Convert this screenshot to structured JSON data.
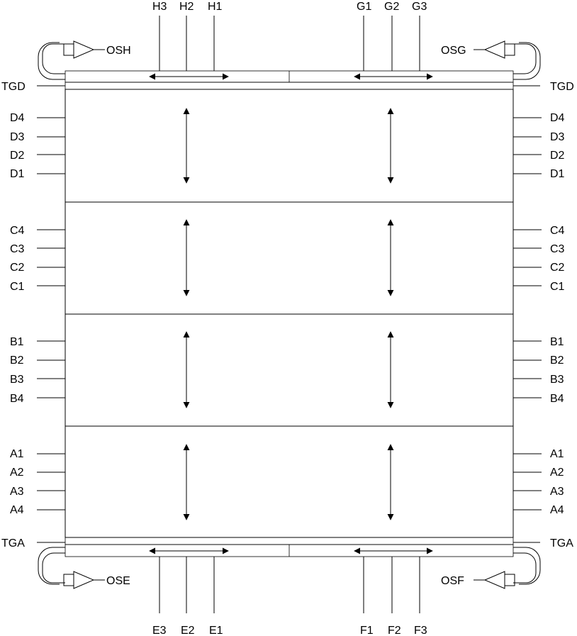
{
  "colors": {
    "line": "#000000",
    "background": "#ffffff"
  },
  "top_pins": {
    "left": [
      "H3",
      "H2",
      "H1"
    ],
    "right": [
      "G1",
      "G2",
      "G3"
    ]
  },
  "bottom_pins": {
    "left": [
      "E3",
      "E2",
      "E1"
    ],
    "right": [
      "F1",
      "F2",
      "F3"
    ]
  },
  "amplifiers": {
    "top_left": "OSH",
    "top_right": "OSG",
    "bottom_left": "OSE",
    "bottom_right": "OSF"
  },
  "transfer_gates": {
    "top": "TGD",
    "bottom": "TGA"
  },
  "bands": [
    {
      "pins": [
        "D4",
        "D3",
        "D2",
        "D1"
      ]
    },
    {
      "pins": [
        "C4",
        "C3",
        "C2",
        "C1"
      ]
    },
    {
      "pins": [
        "B1",
        "B2",
        "B3",
        "B4"
      ]
    },
    {
      "pins": [
        "A1",
        "A2",
        "A3",
        "A4"
      ]
    }
  ]
}
